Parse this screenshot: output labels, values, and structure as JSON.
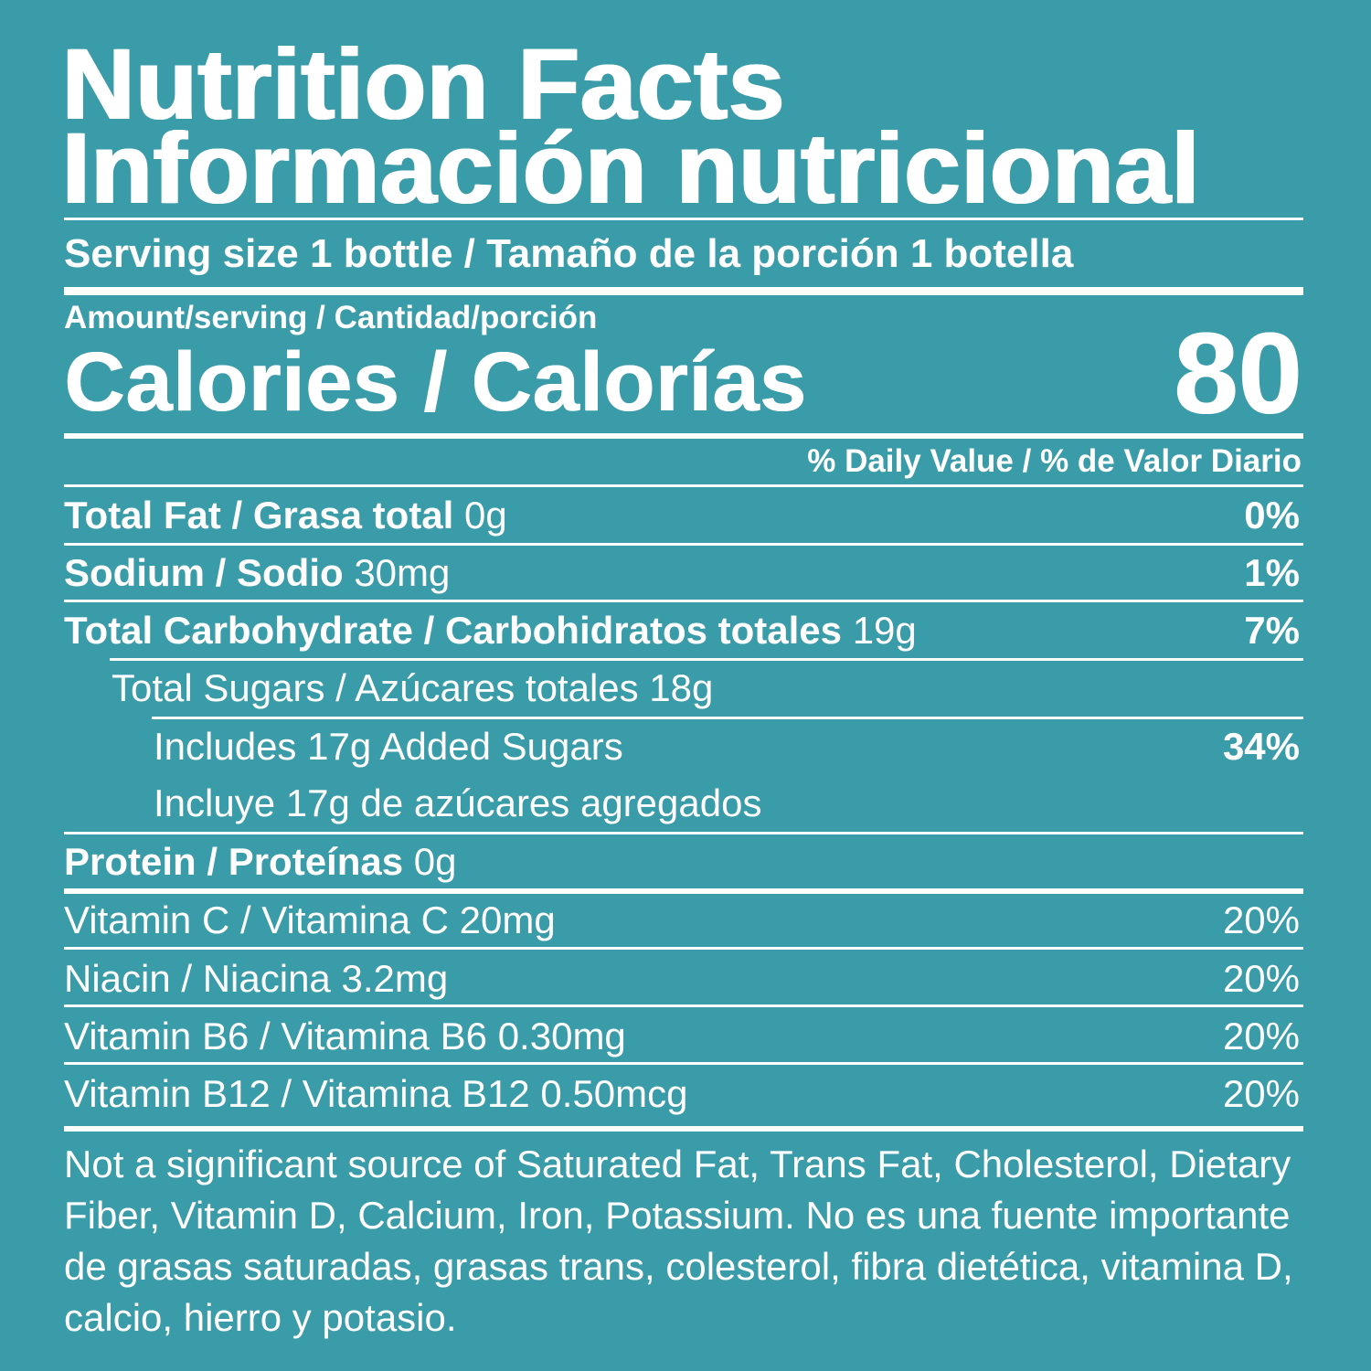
{
  "title_en": "Nutrition Facts",
  "title_es": "Información nutricional",
  "serving_size": "Serving size 1 bottle / Tamaño de la porción 1 botella",
  "amount_per_serving": "Amount/serving / Cantidad/porción",
  "calories_label": "Calories / Calorías",
  "calories_value": "80",
  "daily_value_header": "% Daily Value / % de Valor Diario",
  "nutrients": {
    "total_fat": {
      "label": "Total Fat / Grasa total",
      "amount": "0g",
      "dv": "0%"
    },
    "sodium": {
      "label": "Sodium / Sodio",
      "amount": "30mg",
      "dv": "1%"
    },
    "total_carb": {
      "label": "Total Carbohydrate / Carbohidratos totales",
      "amount": "19g",
      "dv": "7%"
    },
    "total_sugars": {
      "text": "Total Sugars / Azúcares totales 18g"
    },
    "added_sugars_en": {
      "text": "Includes 17g Added Sugars",
      "dv": "34%"
    },
    "added_sugars_es": {
      "text": "Incluye 17g de azúcares agregados"
    },
    "protein": {
      "label": "Protein / Proteínas",
      "amount": "0g"
    }
  },
  "vitamins": {
    "vitamin_c": {
      "text": "Vitamin C / Vitamina C 20mg",
      "dv": "20%"
    },
    "niacin": {
      "text": "Niacin / Niacina 3.2mg",
      "dv": "20%"
    },
    "vitamin_b6": {
      "text": "Vitamin B6 / Vitamina B6 0.30mg",
      "dv": "20%"
    },
    "vitamin_b12": {
      "text": "Vitamin B12 / Vitamina B12 0.50mcg",
      "dv": "20%"
    }
  },
  "footnote": "Not a significant source of Saturated Fat, Trans Fat, Cholesterol, Dietary Fiber, Vitamin D, Calcium, Iron, Potassium. No es una fuente importante de grasas saturadas, grasas trans, colesterol, fibra dietética, vitamina D, calcio, hierro y potasio.",
  "colors": {
    "background": "#3a9ba9",
    "foreground": "#ffffff"
  }
}
